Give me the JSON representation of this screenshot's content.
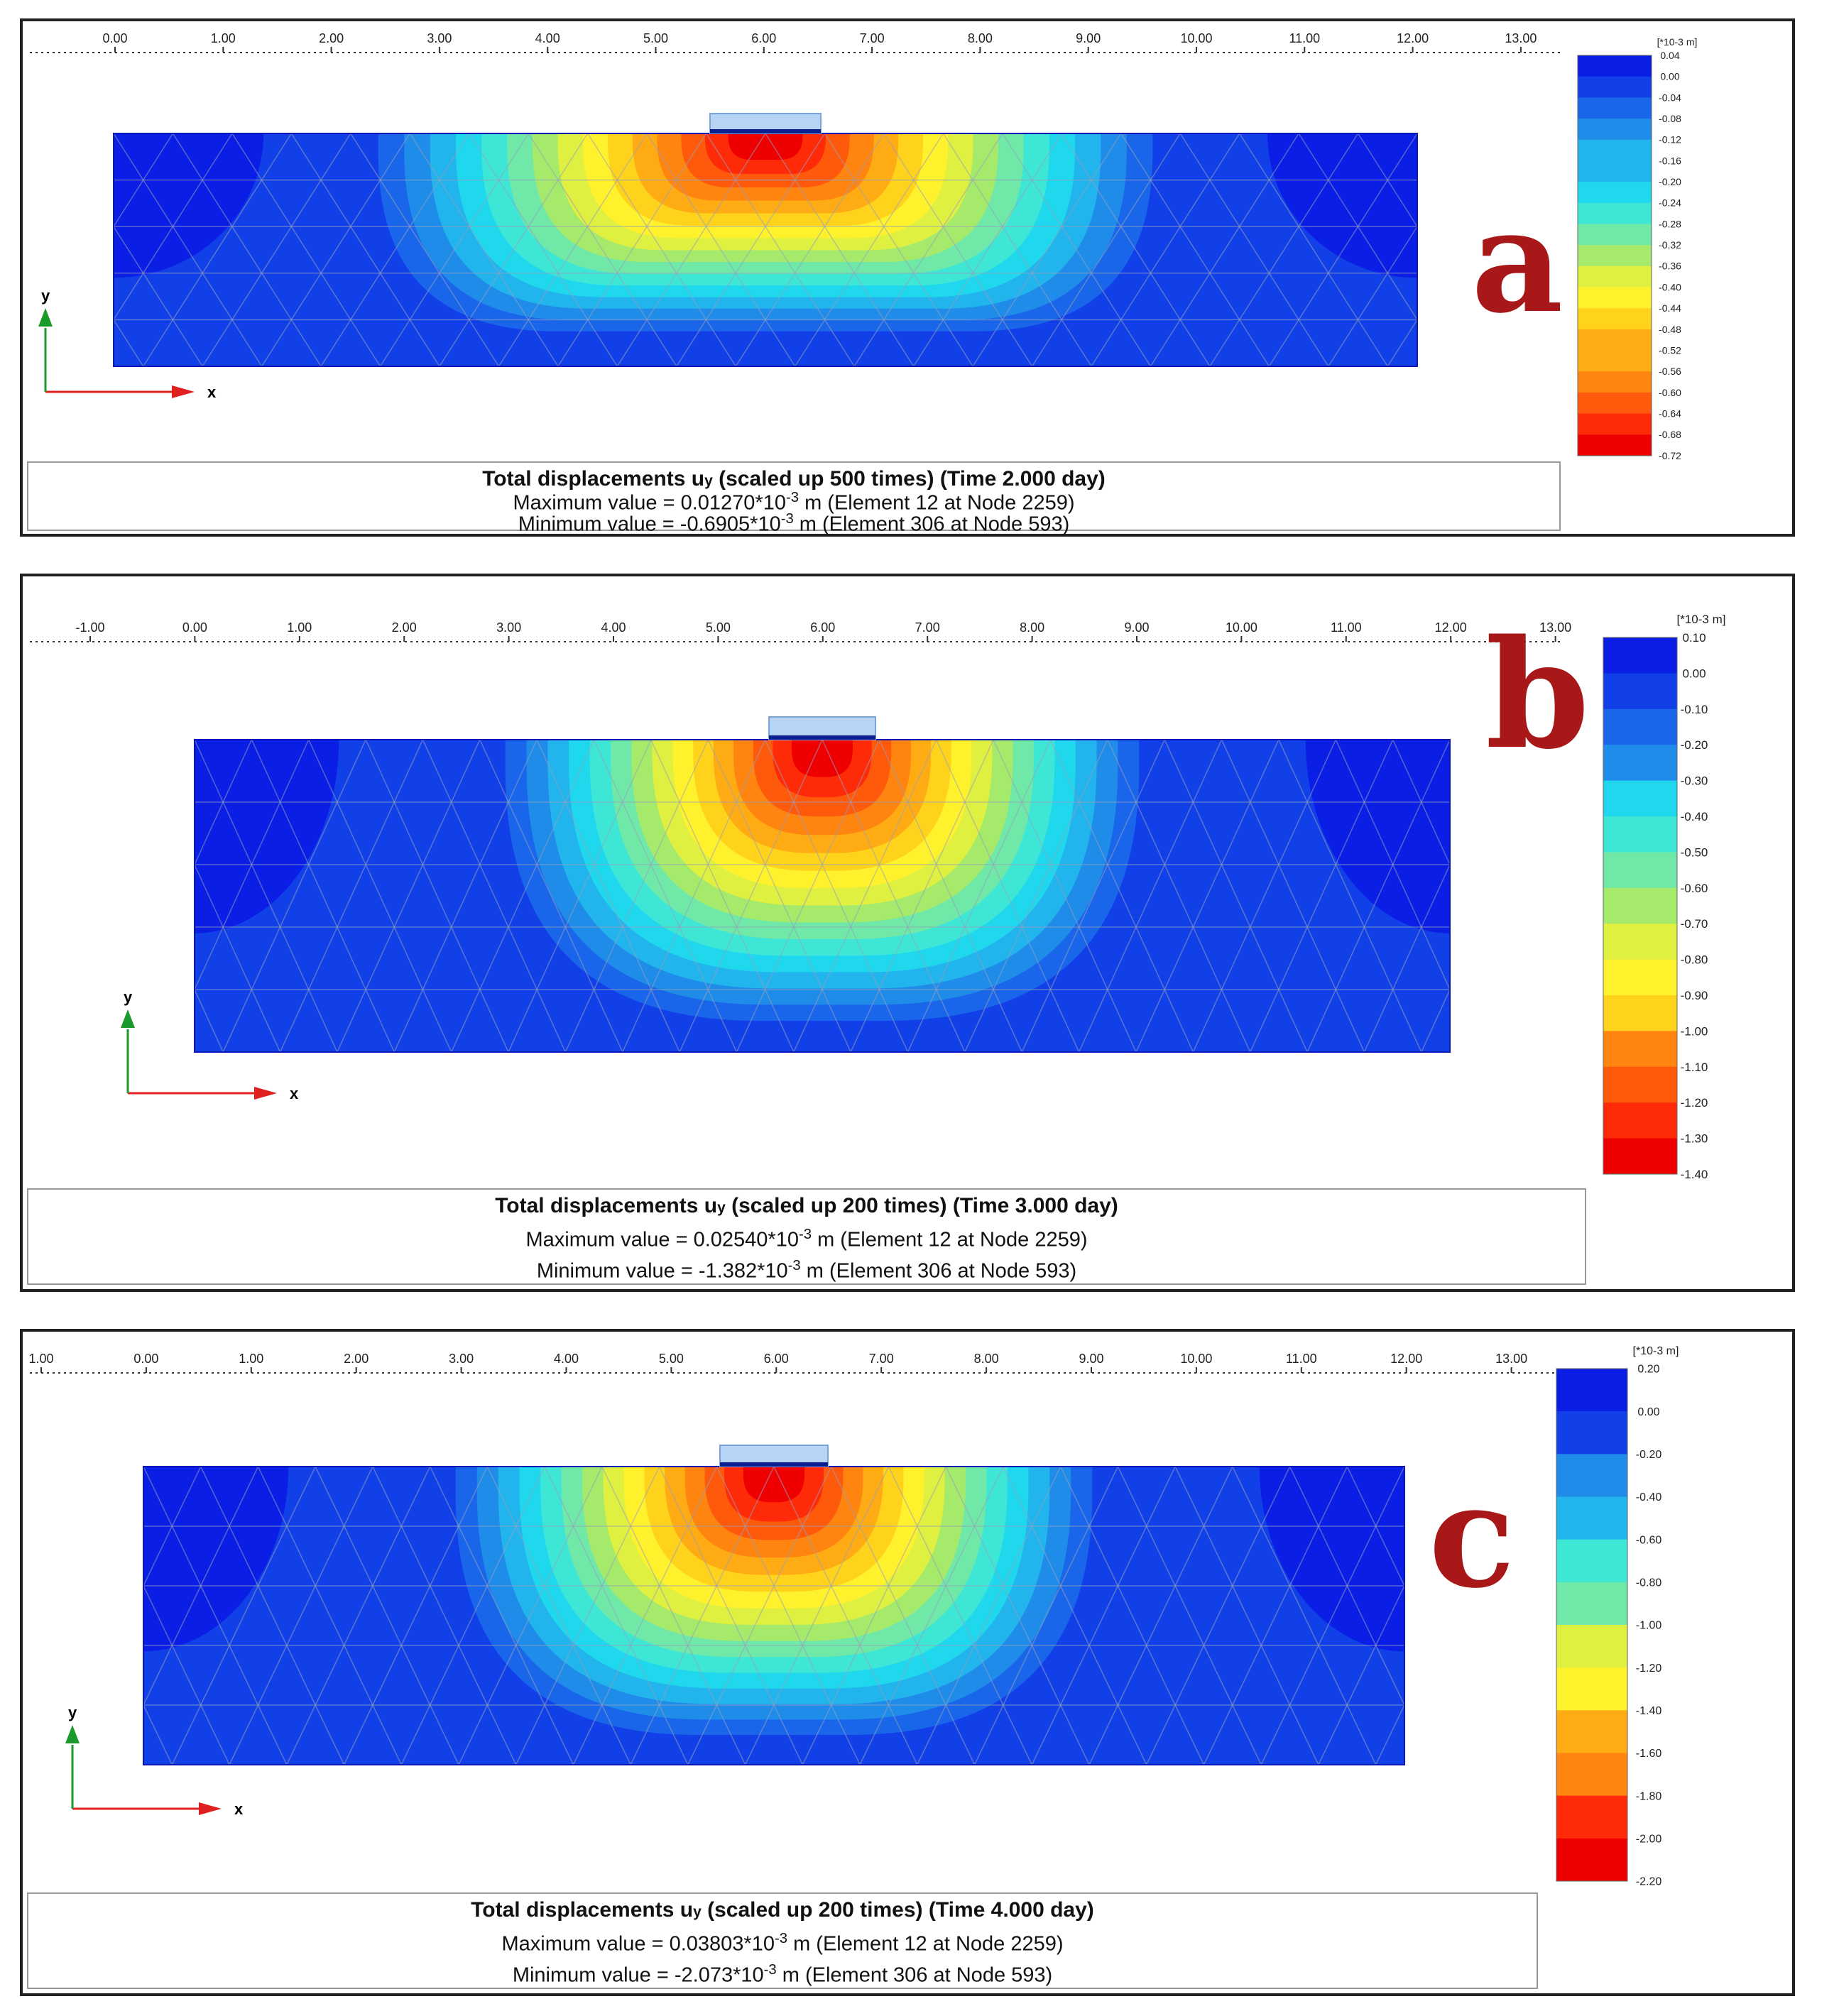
{
  "panels": [
    {
      "letter": "a",
      "x_ticks": [
        "0.00",
        "1.00",
        "2.00",
        "3.00",
        "4.00",
        "5.00",
        "6.00",
        "7.00",
        "8.00",
        "9.00",
        "10.00",
        "11.00",
        "12.00",
        "13.00"
      ],
      "legend_unit": "[*10-3 m]",
      "legend_labels": [
        "0.04",
        "0.00",
        "-0.04",
        "-0.08",
        "-0.12",
        "-0.16",
        "-0.20",
        "-0.24",
        "-0.28",
        "-0.32",
        "-0.36",
        "-0.40",
        "-0.44",
        "-0.48",
        "-0.52",
        "-0.56",
        "-0.60",
        "-0.64",
        "-0.68",
        "-0.72"
      ],
      "caption": {
        "title_pre": "Total displacements u",
        "title_sub": "y",
        "title_post": " (scaled up 500 times) (Time 2.000 day)",
        "max_pre": "Maximum value = 0.01270*10",
        "max_exp": "-3",
        "max_post": " m (Element 12 at Node 2259)",
        "min_pre": "Minimum value = -0.6905*10",
        "min_exp": "-3",
        "min_post": " m (Element 306 at Node 593)"
      }
    },
    {
      "letter": "b",
      "x_ticks": [
        "-1.00",
        "0.00",
        "1.00",
        "2.00",
        "3.00",
        "4.00",
        "5.00",
        "6.00",
        "7.00",
        "8.00",
        "9.00",
        "10.00",
        "11.00",
        "12.00",
        "13.00"
      ],
      "legend_unit": "[*10-3 m]",
      "legend_labels": [
        "0.10",
        "0.00",
        "-0.10",
        "-0.20",
        "-0.30",
        "-0.40",
        "-0.50",
        "-0.60",
        "-0.70",
        "-0.80",
        "-0.90",
        "-1.00",
        "-1.10",
        "-1.20",
        "-1.30",
        "-1.40"
      ],
      "caption": {
        "title_pre": "Total displacements u",
        "title_sub": "y",
        "title_post": " (scaled up 200 times) (Time 3.000 day)",
        "max_pre": "Maximum value = 0.02540*10",
        "max_exp": "-3",
        "max_post": " m (Element 12 at Node 2259)",
        "min_pre": "Minimum value = -1.382*10",
        "min_exp": "-3",
        "min_post": " m (Element 306 at Node 593)"
      }
    },
    {
      "letter": "c",
      "x_ticks": [
        "1.00",
        "0.00",
        "1.00",
        "2.00",
        "3.00",
        "4.00",
        "5.00",
        "6.00",
        "7.00",
        "8.00",
        "9.00",
        "10.00",
        "11.00",
        "12.00",
        "13.00"
      ],
      "legend_unit": "[*10-3 m]",
      "legend_labels": [
        "0.20",
        "0.00",
        "-0.20",
        "-0.40",
        "-0.60",
        "-0.80",
        "-1.00",
        "-1.20",
        "-1.40",
        "-1.60",
        "-1.80",
        "-2.00",
        "-2.20"
      ],
      "caption": {
        "title_pre": "Total displacements u",
        "title_sub": "y",
        "title_post": " (scaled up 200 times) (Time 4.000 day)",
        "max_pre": "Maximum value = 0.03803*10",
        "max_exp": "-3",
        "max_post": " m (Element 12 at Node 2259)",
        "min_pre": "Minimum value = -2.073*10",
        "min_exp": "-3",
        "min_post": " m (Element 306 at Node 593)"
      }
    }
  ],
  "axis_labels": {
    "x": "x",
    "y": "y"
  },
  "colors": {
    "contour_scale": [
      "#0a1ee6",
      "#1240e8",
      "#1a66ea",
      "#1f8cea",
      "#22b4ec",
      "#1fd8ee",
      "#3ee6d6",
      "#70e8a8",
      "#a6ea6c",
      "#dff040",
      "#fff22c",
      "#ffd21c",
      "#ffac14",
      "#ff8410",
      "#ff5a0c",
      "#ff2a08",
      "#ee0000"
    ],
    "letter": "#a81818",
    "axis_x": "#e02020",
    "axis_y": "#1a9a2a",
    "footing": "#b8d4f4"
  }
}
